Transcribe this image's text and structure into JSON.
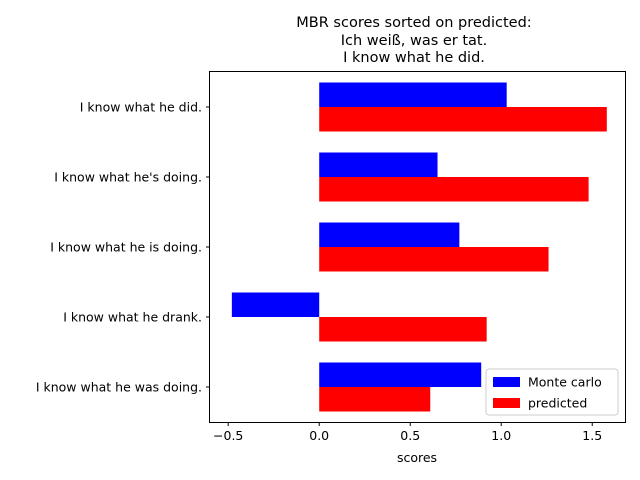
{
  "chart_data": {
    "type": "bar",
    "orientation": "horizontal",
    "title_lines": [
      "MBR scores sorted on predicted:",
      "Ich weiß, was er tat.",
      "I know what he did."
    ],
    "xlabel": "scores",
    "ylabel": "",
    "xlim": [
      -0.6,
      1.68
    ],
    "xticks": [
      -0.5,
      0.0,
      0.5,
      1.0,
      1.5
    ],
    "xtick_labels": [
      "−0.5",
      "0.0",
      "0.5",
      "1.0",
      "1.5"
    ],
    "categories": [
      "I know what he did.",
      "I know what he's doing.",
      "I know what he is doing.",
      "I know what he drank.",
      "I know what he was doing."
    ],
    "series": [
      {
        "name": "Monte carlo",
        "color": "#0000ff",
        "values": [
          1.03,
          0.65,
          0.77,
          -0.48,
          0.89
        ]
      },
      {
        "name": "predicted",
        "color": "#ff0000",
        "values": [
          1.58,
          1.48,
          1.26,
          0.92,
          0.61
        ]
      }
    ],
    "legend_position": "lower-right",
    "grid": false
  }
}
